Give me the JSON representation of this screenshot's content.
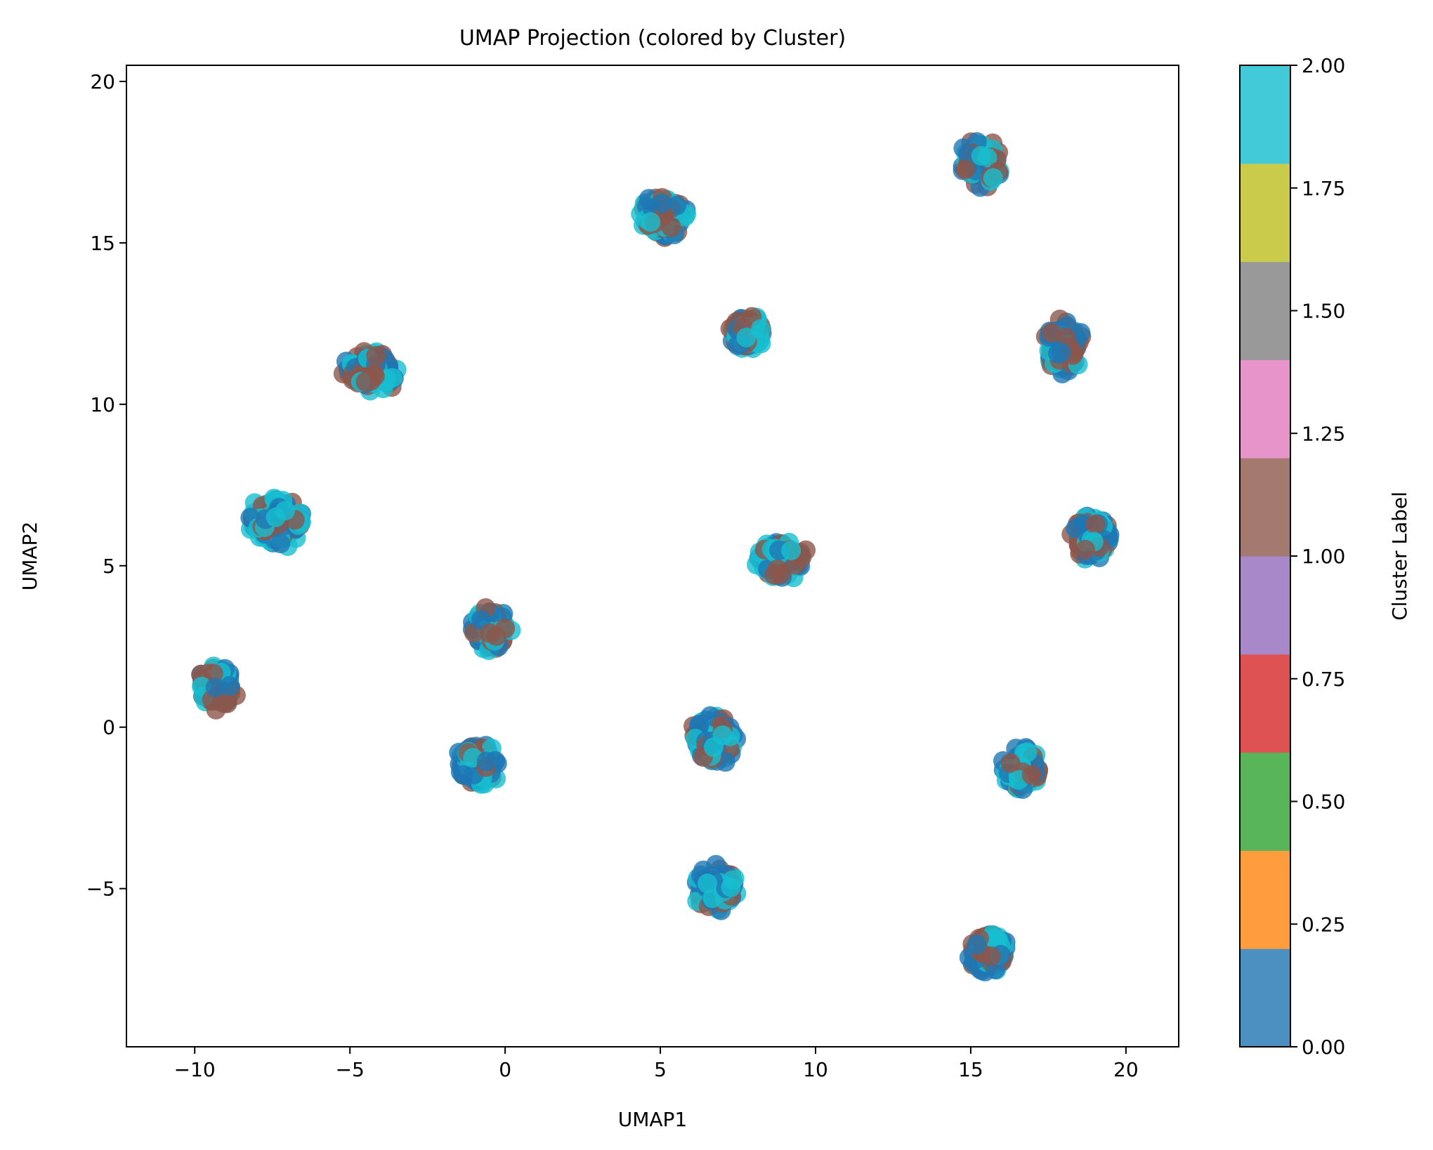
{
  "chart_data": {
    "type": "scatter",
    "title": "UMAP Projection (colored by Cluster)",
    "xlabel": "UMAP1",
    "ylabel": "UMAP2",
    "xlim": [
      -12.2,
      21.7
    ],
    "ylim": [
      -9.9,
      20.5
    ],
    "xticks": [
      -10,
      -5,
      0,
      5,
      10,
      15,
      20
    ],
    "xtick_labels": [
      "−10",
      "−5",
      "0",
      "5",
      "10",
      "15",
      "20"
    ],
    "yticks": [
      -5,
      0,
      5,
      10,
      15,
      20
    ],
    "ytick_labels": [
      "−5",
      "0",
      "5",
      "10",
      "15",
      "20"
    ],
    "grid": false,
    "legend": "none",
    "point_colors": {
      "0": "#1f77b4",
      "1": "#8c564b",
      "2": "#17becf"
    },
    "point_alpha": 0.8,
    "groups": [
      {
        "center": [
          -9.3,
          1.2
        ],
        "spread": [
          0.75,
          0.8
        ],
        "count": 90
      },
      {
        "center": [
          -7.3,
          6.4
        ],
        "spread": [
          1.1,
          0.85
        ],
        "count": 120
      },
      {
        "center": [
          -4.3,
          11.0
        ],
        "spread": [
          1.0,
          0.75
        ],
        "count": 110
      },
      {
        "center": [
          -0.5,
          3.0
        ],
        "spread": [
          0.75,
          0.75
        ],
        "count": 100
      },
      {
        "center": [
          -0.9,
          -1.2
        ],
        "spread": [
          0.8,
          0.8
        ],
        "count": 100
      },
      {
        "center": [
          5.0,
          15.8
        ],
        "spread": [
          1.0,
          0.7
        ],
        "count": 110
      },
      {
        "center": [
          6.7,
          -0.4
        ],
        "spread": [
          0.8,
          0.9
        ],
        "count": 100
      },
      {
        "center": [
          6.8,
          -5.0
        ],
        "spread": [
          0.8,
          0.75
        ],
        "count": 100
      },
      {
        "center": [
          7.8,
          12.2
        ],
        "spread": [
          0.65,
          0.65
        ],
        "count": 90
      },
      {
        "center": [
          8.9,
          5.2
        ],
        "spread": [
          0.9,
          0.7
        ],
        "count": 100
      },
      {
        "center": [
          15.3,
          17.5
        ],
        "spread": [
          0.8,
          0.8
        ],
        "count": 100
      },
      {
        "center": [
          15.6,
          -7.0
        ],
        "spread": [
          0.75,
          0.75
        ],
        "count": 90
      },
      {
        "center": [
          16.7,
          -1.3
        ],
        "spread": [
          0.75,
          0.75
        ],
        "count": 90
      },
      {
        "center": [
          18.0,
          11.8
        ],
        "spread": [
          0.75,
          0.9
        ],
        "count": 100
      },
      {
        "center": [
          18.9,
          5.9
        ],
        "spread": [
          0.75,
          0.75
        ],
        "count": 90
      }
    ],
    "colorbar": {
      "label": "Cluster Label",
      "range": [
        0.0,
        2.0
      ],
      "ticks": [
        0.0,
        0.25,
        0.5,
        0.75,
        1.0,
        1.25,
        1.5,
        1.75,
        2.0
      ],
      "tick_labels": [
        "0.00",
        "0.25",
        "0.50",
        "0.75",
        "1.00",
        "1.25",
        "1.50",
        "1.75",
        "2.00"
      ],
      "colors": [
        "#4c90c2",
        "#ff9c3e",
        "#59b55a",
        "#de5253",
        "#a888c8",
        "#a37970",
        "#e794cb",
        "#999999",
        "#cbcb4b",
        "#43cad8"
      ]
    }
  }
}
